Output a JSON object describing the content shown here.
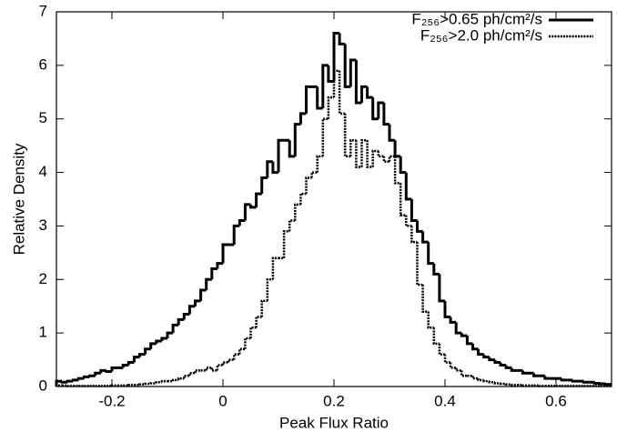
{
  "chart_data": {
    "type": "histogram-step",
    "xlabel": "Peak Flux Ratio",
    "ylabel": "Relative Density",
    "xlim": [
      -0.3,
      0.7
    ],
    "ylim": [
      0,
      7
    ],
    "xticks": [
      -0.2,
      0,
      0.2,
      0.4,
      0.6
    ],
    "yticks": [
      0,
      1,
      2,
      3,
      4,
      5,
      6,
      7
    ],
    "bins": [
      -0.3,
      -0.29,
      -0.28,
      -0.27,
      -0.26,
      -0.25,
      -0.24,
      -0.23,
      -0.22,
      -0.21,
      -0.2,
      -0.19,
      -0.18,
      -0.17,
      -0.16,
      -0.15,
      -0.14,
      -0.13,
      -0.12,
      -0.11,
      -0.1,
      -0.09,
      -0.08,
      -0.07,
      -0.06,
      -0.05,
      -0.04,
      -0.03,
      -0.02,
      -0.01,
      0,
      0.01,
      0.02,
      0.03,
      0.04,
      0.05,
      0.06,
      0.07,
      0.08,
      0.09,
      0.1,
      0.11,
      0.12,
      0.13,
      0.14,
      0.15,
      0.16,
      0.17,
      0.18,
      0.19,
      0.2,
      0.21,
      0.22,
      0.23,
      0.24,
      0.25,
      0.26,
      0.27,
      0.28,
      0.29,
      0.3,
      0.31,
      0.32,
      0.33,
      0.34,
      0.35,
      0.36,
      0.37,
      0.38,
      0.39,
      0.4,
      0.41,
      0.42,
      0.43,
      0.44,
      0.45,
      0.46,
      0.47,
      0.48,
      0.49,
      0.5,
      0.51,
      0.52,
      0.53,
      0.54,
      0.55,
      0.56,
      0.57,
      0.58,
      0.59,
      0.6,
      0.61,
      0.62,
      0.63,
      0.64,
      0.65,
      0.66,
      0.67,
      0.68,
      0.69,
      0.7
    ],
    "legend": "upper right",
    "series": [
      {
        "name": "F₂₅₆>0.65 ph/cm²/s",
        "color": "#000000",
        "style": "solid",
        "values": [
          0.1,
          0.08,
          0.1,
          0.12,
          0.15,
          0.18,
          0.2,
          0.25,
          0.3,
          0.28,
          0.35,
          0.35,
          0.4,
          0.45,
          0.55,
          0.6,
          0.7,
          0.8,
          0.85,
          0.9,
          1.0,
          1.15,
          1.25,
          1.35,
          1.5,
          1.6,
          1.8,
          2.0,
          2.2,
          2.3,
          2.65,
          2.65,
          3.0,
          3.1,
          3.4,
          3.35,
          3.6,
          3.9,
          4.2,
          4.0,
          4.6,
          4.6,
          4.3,
          4.9,
          5.1,
          5.6,
          5.6,
          5.2,
          6.0,
          5.7,
          6.6,
          6.4,
          5.6,
          6.1,
          5.3,
          5.6,
          5.4,
          5.0,
          5.3,
          4.9,
          4.6,
          4.3,
          4.0,
          3.5,
          3.1,
          2.9,
          2.7,
          2.3,
          2.1,
          1.6,
          1.3,
          1.2,
          1.0,
          0.95,
          0.8,
          0.7,
          0.6,
          0.55,
          0.5,
          0.45,
          0.4,
          0.35,
          0.3,
          0.3,
          0.25,
          0.25,
          0.2,
          0.2,
          0.15,
          0.15,
          0.15,
          0.12,
          0.12,
          0.1,
          0.1,
          0.08,
          0.08,
          0.06,
          0.05,
          0.04
        ]
      },
      {
        "name": "F₂₅₆>2.0 ph/cm²/s",
        "color": "#000000",
        "style": "dashed",
        "values": [
          0.02,
          0.02,
          0.01,
          0.01,
          0.01,
          0.01,
          0.01,
          0.01,
          0.01,
          0.01,
          0.02,
          0.02,
          0.02,
          0.03,
          0.03,
          0.04,
          0.05,
          0.06,
          0.08,
          0.1,
          0.1,
          0.12,
          0.15,
          0.2,
          0.25,
          0.3,
          0.3,
          0.35,
          0.3,
          0.4,
          0.45,
          0.5,
          0.6,
          0.7,
          0.9,
          1.1,
          1.3,
          1.6,
          2.0,
          2.4,
          2.4,
          2.9,
          3.1,
          3.4,
          3.6,
          3.9,
          4.0,
          4.3,
          5.0,
          5.4,
          5.9,
          5.1,
          4.3,
          4.6,
          4.1,
          4.6,
          4.1,
          4.4,
          4.3,
          4.2,
          4.3,
          3.8,
          3.2,
          3.0,
          2.7,
          1.9,
          1.4,
          1.1,
          0.8,
          0.6,
          0.45,
          0.35,
          0.3,
          0.2,
          0.2,
          0.15,
          0.12,
          0.1,
          0.08,
          0.06,
          0.05,
          0.04,
          0.03,
          0.03,
          0.02,
          0.02,
          0.02,
          0.01,
          0.01,
          0.01,
          0.01,
          0.01,
          0.01,
          0.01,
          0.01,
          0.01,
          0.01,
          0.01,
          0.01,
          0.01
        ]
      }
    ]
  }
}
